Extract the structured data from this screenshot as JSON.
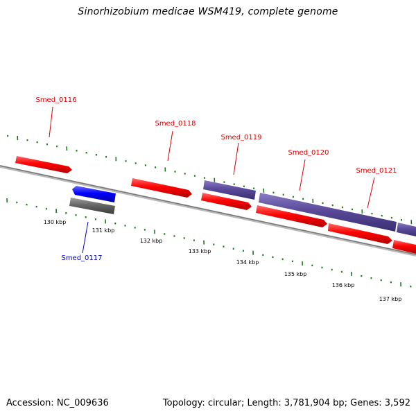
{
  "title": "Sinorhizobium medicae WSM419, complete genome",
  "footer": {
    "accession": "Accession: NC_009636",
    "summary": "Topology: circular; Length: 3,781,904 bp; Genes: 3,592"
  },
  "colors": {
    "forward_gene": "#ff0000",
    "reverse_gene": "#0000ff",
    "other_feature": "#5a4a9a",
    "pseudo_feature": "#666666",
    "backbone": "#888888",
    "ticks": "#1a7a1a"
  },
  "scale": {
    "tick_labels": [
      "130 kbp",
      "131 kbp",
      "132 kbp",
      "133 kbp",
      "134 kbp",
      "135 kbp",
      "136 kbp",
      "137 kbp"
    ]
  },
  "genes": [
    {
      "label": "Smed_0116",
      "color_key": "forward_gene"
    },
    {
      "label": "Smed_0117",
      "color_key": "reverse_gene"
    },
    {
      "label": "Smed_0118",
      "color_key": "forward_gene"
    },
    {
      "label": "Smed_0119",
      "color_key": "forward_gene"
    },
    {
      "label": "Smed_0120",
      "color_key": "forward_gene"
    },
    {
      "label": "Smed_0121",
      "color_key": "forward_gene"
    }
  ]
}
